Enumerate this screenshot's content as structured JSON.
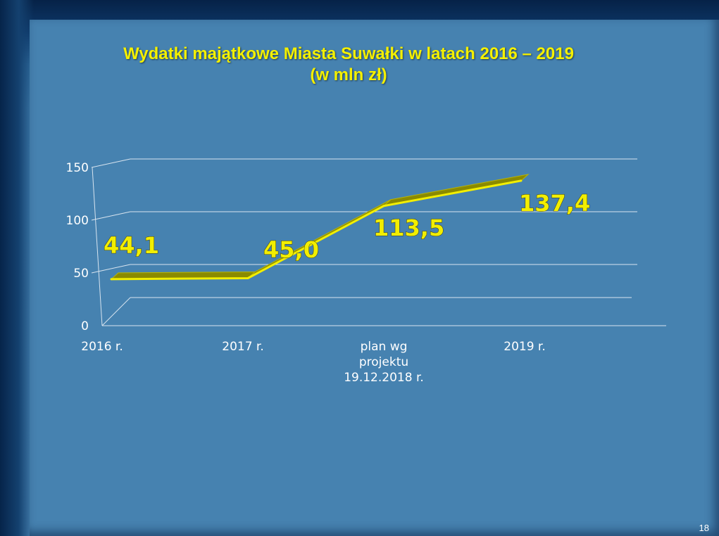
{
  "slide": {
    "title_line1": "Wydatki majątkowe Miasta Suwałki w latach 2016 – 2019",
    "title_line2": "(w mln zł)",
    "page_number": "18"
  },
  "chart_data": {
    "type": "line",
    "title": "Wydatki majątkowe Miasta Suwałki w latach 2016 – 2019 (w mln zł)",
    "categories": [
      "2016 r.",
      "2017 r.",
      "plan wg projektu 19.12.2018 r.",
      "2019 r."
    ],
    "category_label_lines": [
      [
        "2016 r."
      ],
      [
        "2017 r."
      ],
      [
        "plan wg",
        "projektu",
        "19.12.2018 r."
      ],
      [
        "2019 r."
      ]
    ],
    "series": [
      {
        "values": [
          44.1,
          45.0,
          113.5,
          137.4
        ]
      }
    ],
    "data_labels": [
      "44,1",
      "45,0",
      "113,5",
      "137,4"
    ],
    "yticks": [
      0,
      50,
      100,
      150
    ],
    "ylim": [
      0,
      150
    ],
    "grid": true,
    "legend": "none",
    "style": "3d-line",
    "colors": {
      "line": "#f2ee00",
      "line_dark": "#8a8a00",
      "grid": "#d8e4ef",
      "background": "#4682b0"
    }
  }
}
